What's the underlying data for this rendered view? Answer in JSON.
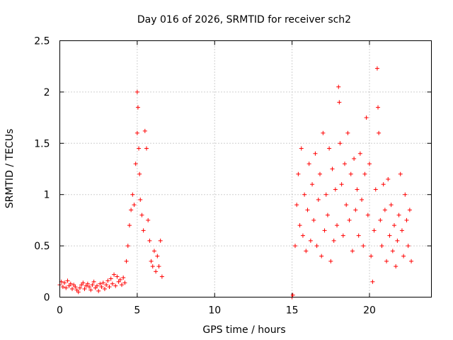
{
  "chart_data": {
    "type": "scatter",
    "title": "Day 016 of 2026, SRMTID for receiver sch2",
    "xlabel": "GPS time / hours",
    "ylabel": "SRMTID / TECUs",
    "xlim": [
      0,
      24
    ],
    "ylim": [
      0,
      2.5
    ],
    "xticks": [
      0,
      5,
      10,
      15,
      20
    ],
    "xtick_labels": [
      "0",
      "5",
      "10",
      "15",
      "20"
    ],
    "yticks": [
      0,
      0.5,
      1,
      1.5,
      2,
      2.5
    ],
    "ytick_labels": [
      "0",
      "0.5",
      "1",
      "1.5",
      "2",
      "2.5"
    ],
    "grid": true,
    "marker": "+",
    "series": [
      {
        "name": "SRMTID",
        "color": "#ff0000",
        "points": [
          [
            0.0,
            0.12
          ],
          [
            0.1,
            0.15
          ],
          [
            0.2,
            0.1
          ],
          [
            0.3,
            0.14
          ],
          [
            0.4,
            0.09
          ],
          [
            0.5,
            0.16
          ],
          [
            0.6,
            0.11
          ],
          [
            0.7,
            0.13
          ],
          [
            0.8,
            0.08
          ],
          [
            0.9,
            0.12
          ],
          [
            1.0,
            0.1
          ],
          [
            1.1,
            0.07
          ],
          [
            1.2,
            0.05
          ],
          [
            1.3,
            0.09
          ],
          [
            1.4,
            0.12
          ],
          [
            1.5,
            0.14
          ],
          [
            1.6,
            0.08
          ],
          [
            1.7,
            0.11
          ],
          [
            1.8,
            0.13
          ],
          [
            1.9,
            0.1
          ],
          [
            2.0,
            0.07
          ],
          [
            2.1,
            0.12
          ],
          [
            2.2,
            0.15
          ],
          [
            2.3,
            0.09
          ],
          [
            2.4,
            0.11
          ],
          [
            2.5,
            0.06
          ],
          [
            2.6,
            0.13
          ],
          [
            2.7,
            0.1
          ],
          [
            2.8,
            0.14
          ],
          [
            2.9,
            0.08
          ],
          [
            3.0,
            0.12
          ],
          [
            3.1,
            0.16
          ],
          [
            3.2,
            0.1
          ],
          [
            3.3,
            0.18
          ],
          [
            3.4,
            0.13
          ],
          [
            3.5,
            0.22
          ],
          [
            3.6,
            0.11
          ],
          [
            3.7,
            0.2
          ],
          [
            3.8,
            0.15
          ],
          [
            3.9,
            0.17
          ],
          [
            4.0,
            0.12
          ],
          [
            4.1,
            0.19
          ],
          [
            4.2,
            0.14
          ],
          [
            4.3,
            0.35
          ],
          [
            4.4,
            0.5
          ],
          [
            4.5,
            0.7
          ],
          [
            4.6,
            0.85
          ],
          [
            4.7,
            1.0
          ],
          [
            4.8,
            0.9
          ],
          [
            4.9,
            1.3
          ],
          [
            5.0,
            1.6
          ],
          [
            5.0,
            2.0
          ],
          [
            5.05,
            1.85
          ],
          [
            5.1,
            1.45
          ],
          [
            5.15,
            1.2
          ],
          [
            5.2,
            0.95
          ],
          [
            5.3,
            0.8
          ],
          [
            5.4,
            0.65
          ],
          [
            5.5,
            1.62
          ],
          [
            5.6,
            1.45
          ],
          [
            5.7,
            0.75
          ],
          [
            5.8,
            0.55
          ],
          [
            5.9,
            0.35
          ],
          [
            6.0,
            0.3
          ],
          [
            6.1,
            0.45
          ],
          [
            6.2,
            0.25
          ],
          [
            6.3,
            0.4
          ],
          [
            6.4,
            0.3
          ],
          [
            6.5,
            0.55
          ],
          [
            6.6,
            0.2
          ],
          [
            15.0,
            0.0
          ],
          [
            15.05,
            0.02
          ],
          [
            15.2,
            0.5
          ],
          [
            15.3,
            0.9
          ],
          [
            15.4,
            1.2
          ],
          [
            15.5,
            0.7
          ],
          [
            15.6,
            1.45
          ],
          [
            15.7,
            0.6
          ],
          [
            15.8,
            1.0
          ],
          [
            15.9,
            0.45
          ],
          [
            16.0,
            0.85
          ],
          [
            16.1,
            1.3
          ],
          [
            16.2,
            0.55
          ],
          [
            16.3,
            1.1
          ],
          [
            16.4,
            0.75
          ],
          [
            16.5,
            1.4
          ],
          [
            16.6,
            0.5
          ],
          [
            16.7,
            0.95
          ],
          [
            16.8,
            1.2
          ],
          [
            16.9,
            0.4
          ],
          [
            17.0,
            1.6
          ],
          [
            17.1,
            0.65
          ],
          [
            17.2,
            1.0
          ],
          [
            17.3,
            0.8
          ],
          [
            17.4,
            1.45
          ],
          [
            17.5,
            0.35
          ],
          [
            17.6,
            1.25
          ],
          [
            17.7,
            0.55
          ],
          [
            17.8,
            1.05
          ],
          [
            17.9,
            0.7
          ],
          [
            18.0,
            2.05
          ],
          [
            18.05,
            1.9
          ],
          [
            18.1,
            1.5
          ],
          [
            18.2,
            1.1
          ],
          [
            18.3,
            0.6
          ],
          [
            18.4,
            1.3
          ],
          [
            18.5,
            0.9
          ],
          [
            18.6,
            1.6
          ],
          [
            18.7,
            0.75
          ],
          [
            18.8,
            1.2
          ],
          [
            18.9,
            0.45
          ],
          [
            19.0,
            1.35
          ],
          [
            19.1,
            0.85
          ],
          [
            19.2,
            1.05
          ],
          [
            19.3,
            0.6
          ],
          [
            19.4,
            1.4
          ],
          [
            19.5,
            0.95
          ],
          [
            19.6,
            0.5
          ],
          [
            19.7,
            1.2
          ],
          [
            19.8,
            1.75
          ],
          [
            19.9,
            0.8
          ],
          [
            20.0,
            1.3
          ],
          [
            20.1,
            0.4
          ],
          [
            20.2,
            0.15
          ],
          [
            20.3,
            0.65
          ],
          [
            20.4,
            1.05
          ],
          [
            20.5,
            2.23
          ],
          [
            20.55,
            1.85
          ],
          [
            20.6,
            1.6
          ],
          [
            20.7,
            0.75
          ],
          [
            20.8,
            0.5
          ],
          [
            20.9,
            1.1
          ],
          [
            21.0,
            0.85
          ],
          [
            21.1,
            0.35
          ],
          [
            21.2,
            1.15
          ],
          [
            21.3,
            0.6
          ],
          [
            21.4,
            0.9
          ],
          [
            21.5,
            0.45
          ],
          [
            21.6,
            0.7
          ],
          [
            21.7,
            0.3
          ],
          [
            21.8,
            0.55
          ],
          [
            21.9,
            0.8
          ],
          [
            22.0,
            1.2
          ],
          [
            22.1,
            0.65
          ],
          [
            22.2,
            0.4
          ],
          [
            22.3,
            1.0
          ],
          [
            22.4,
            0.75
          ],
          [
            22.5,
            0.5
          ],
          [
            22.6,
            0.85
          ],
          [
            22.7,
            0.35
          ]
        ]
      }
    ]
  }
}
